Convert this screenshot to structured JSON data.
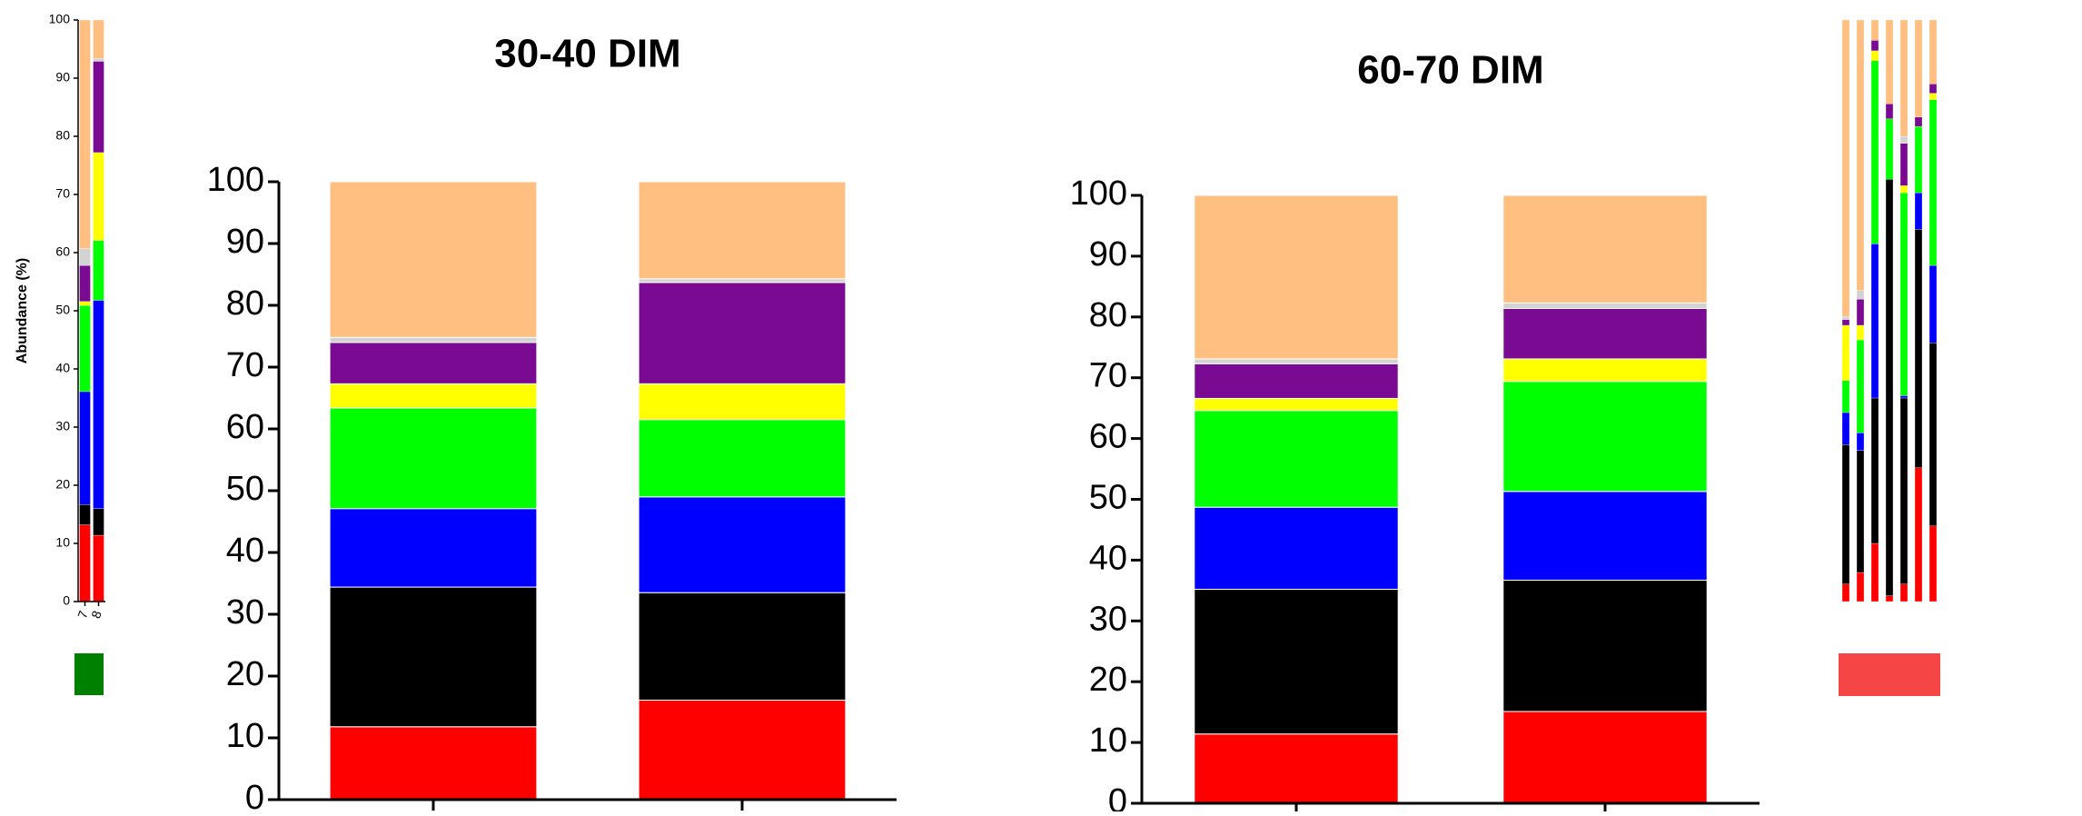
{
  "chart_data": [
    {
      "type": "bar",
      "stacked": true,
      "y_label": "Abundance (%)",
      "categories": [
        "7",
        "8"
      ],
      "ylim": [
        0,
        100
      ],
      "yticks": [
        0,
        10,
        20,
        30,
        40,
        50,
        60,
        70,
        80,
        90,
        100
      ],
      "series": [
        {
          "color": "#ff0000",
          "values": [
            13.2,
            11.4
          ]
        },
        {
          "color": "#000000",
          "values": [
            3.5,
            4.6
          ]
        },
        {
          "color": "#0000ff",
          "values": [
            19.4,
            35.8
          ]
        },
        {
          "color": "#00ff00",
          "values": [
            14.8,
            10.3
          ]
        },
        {
          "color": "#ffff00",
          "values": [
            0.7,
            15.1
          ]
        },
        {
          "color": "#7b0a92",
          "values": [
            6.2,
            15.7
          ]
        },
        {
          "color": "#d3d3d3",
          "values": [
            2.9,
            0.5
          ]
        },
        {
          "color": "#ffbf80",
          "values": [
            39.3,
            6.6
          ]
        }
      ]
    },
    {
      "type": "bar",
      "stacked": true,
      "title": "30-40 DIM",
      "categories": [
        null,
        null
      ],
      "ylim": [
        0,
        100
      ],
      "yticks": [
        0,
        10,
        20,
        30,
        40,
        50,
        60,
        70,
        80,
        90,
        100
      ],
      "series": [
        {
          "color": "#ff0000",
          "values": [
            11.8,
            16.1
          ]
        },
        {
          "color": "#000000",
          "values": [
            22.6,
            17.4
          ]
        },
        {
          "color": "#0000ff",
          "values": [
            12.7,
            15.5
          ]
        },
        {
          "color": "#00ff00",
          "values": [
            16.3,
            12.5
          ]
        },
        {
          "color": "#ffff00",
          "values": [
            3.9,
            5.8
          ]
        },
        {
          "color": "#7b0a92",
          "values": [
            6.7,
            16.4
          ]
        },
        {
          "color": "#d3d3d3",
          "values": [
            0.8,
            0.6
          ]
        },
        {
          "color": "#ffbf80",
          "values": [
            25.2,
            15.7
          ]
        }
      ]
    },
    {
      "type": "bar",
      "stacked": true,
      "title": "60-70 DIM",
      "categories": [
        null,
        null
      ],
      "ylim": [
        0,
        100
      ],
      "yticks": [
        0,
        10,
        20,
        30,
        40,
        50,
        60,
        70,
        80,
        90,
        100
      ],
      "series": [
        {
          "color": "#ff0000",
          "values": [
            11.4,
            15.1
          ]
        },
        {
          "color": "#000000",
          "values": [
            23.8,
            21.6
          ]
        },
        {
          "color": "#0000ff",
          "values": [
            13.5,
            14.6
          ]
        },
        {
          "color": "#00ff00",
          "values": [
            15.9,
            18.1
          ]
        },
        {
          "color": "#ffff00",
          "values": [
            2.0,
            3.7
          ]
        },
        {
          "color": "#7b0a92",
          "values": [
            5.7,
            8.3
          ]
        },
        {
          "color": "#d3d3d3",
          "values": [
            0.8,
            0.9
          ]
        },
        {
          "color": "#ffbf80",
          "values": [
            26.9,
            17.7
          ]
        }
      ]
    },
    {
      "type": "bar",
      "stacked": true,
      "categories": [
        null,
        null,
        null,
        null,
        null,
        null,
        null
      ],
      "ylim": [
        0,
        100
      ],
      "series": [
        {
          "color": "#ff0000",
          "values": [
            3,
            5,
            10,
            1,
            3,
            23,
            13
          ]
        },
        {
          "color": "#000000",
          "values": [
            24,
            21,
            25,
            71.6,
            32,
            41,
            31.5
          ]
        },
        {
          "color": "#0000ff",
          "values": [
            5.5,
            3,
            26.5,
            0,
            0.4,
            6.3,
            13.3
          ]
        },
        {
          "color": "#00ff00",
          "values": [
            5.5,
            16,
            31.5,
            10.4,
            34.9,
            11.4,
            28.5
          ]
        },
        {
          "color": "#ffff00",
          "values": [
            9.5,
            2.5,
            1.7,
            0,
            1.2,
            0,
            1.1
          ]
        },
        {
          "color": "#7b0a92",
          "values": [
            1,
            4.5,
            1.8,
            2.6,
            7.3,
            1.6,
            1.6
          ]
        },
        {
          "color": "#d3d3d3",
          "values": [
            0.5,
            1.5,
            0,
            0,
            1.2,
            0,
            0
          ]
        },
        {
          "color": "#ffbf80",
          "values": [
            51,
            46.5,
            3.5,
            14.4,
            20,
            16.7,
            11
          ]
        }
      ]
    }
  ]
}
